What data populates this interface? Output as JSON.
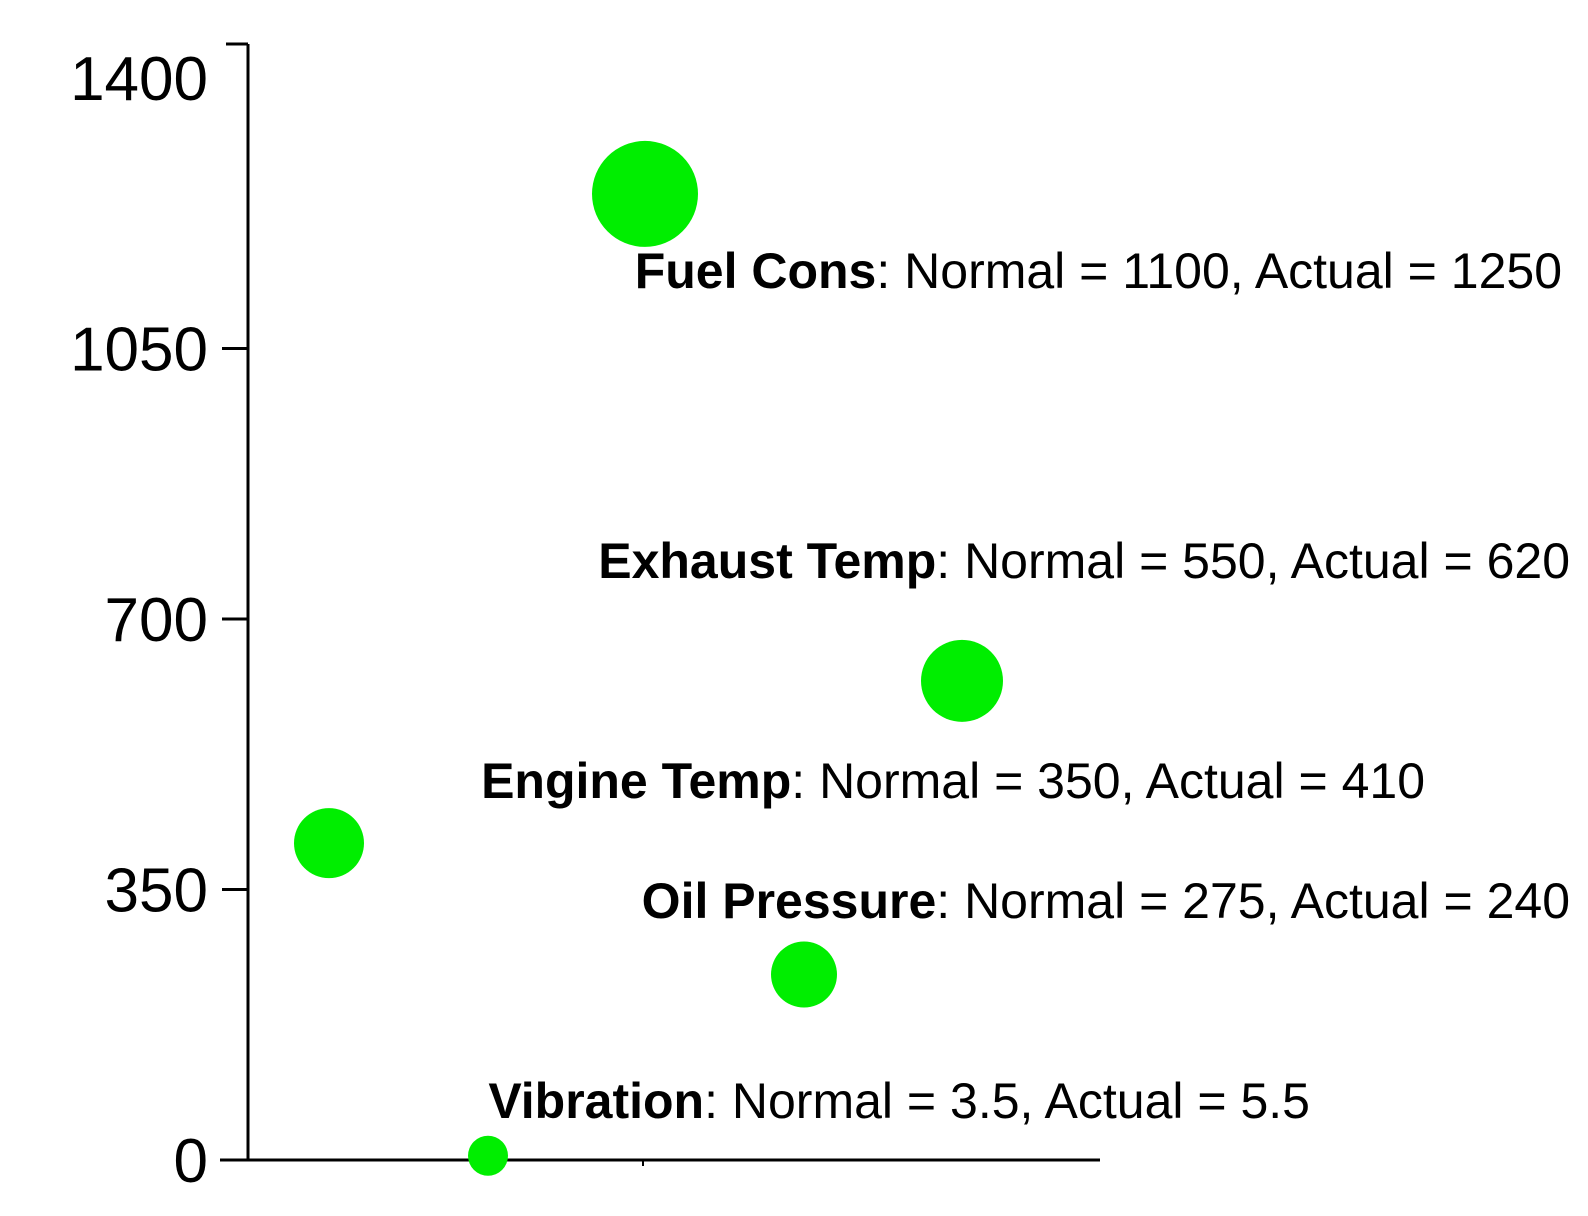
{
  "chart_data": {
    "type": "scatter",
    "title": "",
    "xlabel": "",
    "ylabel": "",
    "ylim": [
      0,
      1400
    ],
    "yticks": [
      0,
      350,
      700,
      1050,
      1400
    ],
    "grid": false,
    "legend": "none",
    "marker_color": "#00ee00",
    "axis_color": "#000000",
    "points": [
      {
        "name": "Fuel Cons",
        "normal": 1100,
        "actual": 1250,
        "y": 1250,
        "text": "Fuel Cons",
        "detail": ": Normal = 1100, Actual = 1250"
      },
      {
        "name": "Exhaust Temp",
        "normal": 550,
        "actual": 620,
        "y": 620,
        "text": "Exhaust Temp",
        "detail": ": Normal = 550, Actual = 620"
      },
      {
        "name": "Engine Temp",
        "normal": 350,
        "actual": 410,
        "y": 410,
        "text": "Engine Temp",
        "detail": ": Normal = 350, Actual = 410"
      },
      {
        "name": "Oil Pressure",
        "normal": 275,
        "actual": 240,
        "y": 240,
        "text": "Oil Pressure",
        "detail": ": Normal = 275, Actual = 240"
      },
      {
        "name": "Vibration",
        "normal": 3.5,
        "actual": 5.5,
        "y": 5.5,
        "text": "Vibration",
        "detail": ": Normal = 3.5, Actual = 5.5"
      }
    ]
  }
}
